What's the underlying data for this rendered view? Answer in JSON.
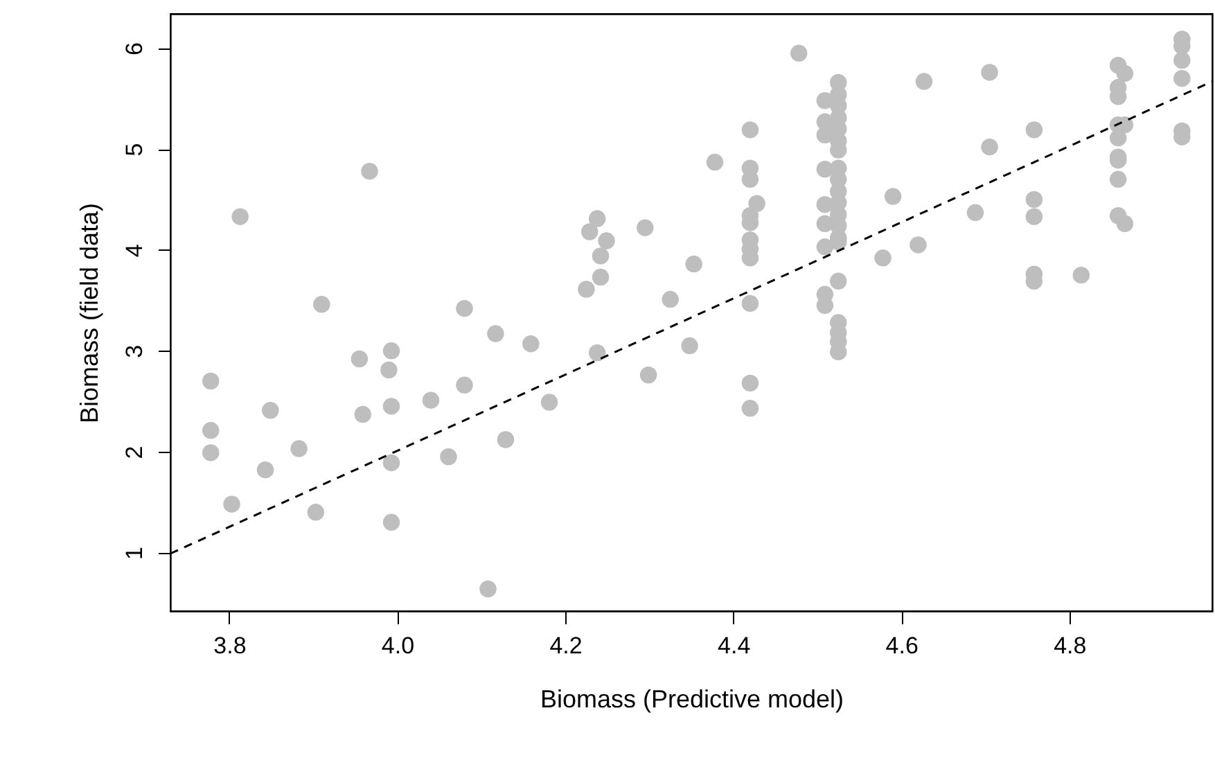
{
  "chart_data": {
    "type": "scatter",
    "xlabel": "Biomass (Predictive model)",
    "ylabel": "Biomass (field data)",
    "xlim": [
      3.73,
      4.97
    ],
    "ylim": [
      0.42,
      6.34
    ],
    "xticks": [
      {
        "value": 3.8,
        "label": "3.8"
      },
      {
        "value": 4.0,
        "label": "4.0"
      },
      {
        "value": 4.2,
        "label": "4.2"
      },
      {
        "value": 4.4,
        "label": "4.4"
      },
      {
        "value": 4.6,
        "label": "4.6"
      },
      {
        "value": 4.8,
        "label": "4.8"
      }
    ],
    "yticks": [
      1,
      2,
      3,
      4,
      5,
      6
    ],
    "grid": false,
    "series": [
      {
        "marker": "circle",
        "color": "#bebebe",
        "x": [
          3.778,
          3.778,
          3.778,
          3.813,
          3.803,
          3.849,
          3.843,
          3.883,
          3.91,
          3.903,
          3.967,
          3.955,
          3.959,
          3.993,
          3.99,
          3.993,
          3.993,
          3.993,
          4.04,
          4.061,
          4.08,
          4.08,
          4.108,
          4.117,
          4.129,
          4.159,
          4.181,
          4.225,
          4.229,
          4.238,
          4.249,
          4.242,
          4.242,
          4.238,
          4.295,
          4.299,
          4.325,
          4.353,
          4.348,
          4.378,
          4.42,
          4.42,
          4.42,
          4.428,
          4.42,
          4.42,
          4.42,
          4.42,
          4.42,
          4.42,
          4.42,
          4.42,
          4.478,
          4.509,
          4.509,
          4.509,
          4.509,
          4.509,
          4.509,
          4.509,
          4.509,
          4.509,
          4.525,
          4.525,
          4.525,
          4.525,
          4.525,
          4.525,
          4.525,
          4.525,
          4.525,
          4.525,
          4.525,
          4.525,
          4.525,
          4.525,
          4.525,
          4.525,
          4.525,
          4.525,
          4.525,
          4.525,
          4.578,
          4.59,
          4.62,
          4.627,
          4.688,
          4.705,
          4.705,
          4.758,
          4.758,
          4.758,
          4.758,
          4.758,
          4.814,
          4.858,
          4.858,
          4.858,
          4.858,
          4.858,
          4.858,
          4.858,
          4.858,
          4.858,
          4.866,
          4.866,
          4.866,
          4.934,
          4.934,
          4.934,
          4.934,
          4.934,
          4.934
        ],
        "values": [
          2.7,
          2.21,
          1.99,
          4.33,
          1.48,
          2.41,
          1.82,
          2.03,
          3.46,
          1.4,
          4.78,
          2.92,
          2.37,
          3.0,
          2.81,
          2.45,
          1.89,
          1.3,
          2.51,
          1.95,
          3.42,
          2.66,
          0.64,
          3.17,
          2.12,
          3.07,
          2.49,
          3.61,
          4.18,
          4.31,
          4.09,
          3.94,
          3.73,
          2.98,
          4.22,
          2.76,
          3.51,
          3.86,
          3.05,
          4.87,
          5.19,
          4.81,
          4.7,
          4.46,
          4.34,
          4.27,
          4.1,
          4.01,
          3.92,
          3.47,
          2.68,
          2.43,
          5.95,
          5.48,
          5.27,
          5.14,
          4.8,
          4.45,
          4.26,
          4.03,
          3.56,
          3.45,
          5.66,
          5.54,
          5.43,
          5.31,
          5.2,
          5.08,
          4.99,
          4.81,
          4.7,
          4.58,
          4.47,
          4.35,
          4.24,
          4.12,
          4.08,
          3.69,
          3.28,
          3.18,
          3.09,
          2.99,
          3.92,
          4.53,
          4.05,
          5.67,
          4.37,
          5.76,
          5.02,
          5.19,
          4.5,
          4.33,
          3.76,
          3.69,
          3.75,
          5.83,
          5.61,
          5.52,
          5.24,
          5.11,
          4.92,
          4.89,
          4.7,
          4.34,
          5.75,
          5.24,
          4.26,
          6.09,
          6.02,
          5.88,
          5.7,
          5.18,
          5.12
        ]
      },
      {
        "type": "line",
        "marker": "none",
        "color": "#000000",
        "line_style": "dashed",
        "x": [
          3.73,
          4.97
        ],
        "values": [
          0.99,
          5.67
        ]
      }
    ]
  }
}
